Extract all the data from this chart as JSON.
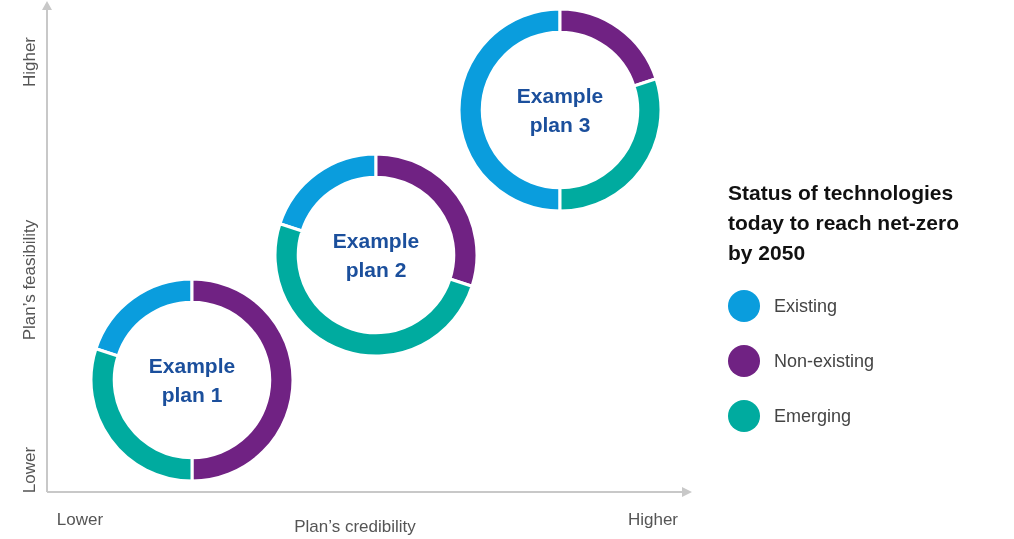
{
  "chart_data": {
    "type": "donut",
    "categories": [
      "Existing",
      "Non-existing",
      "Emerging"
    ],
    "colors": [
      "#0a9ddd",
      "#702283",
      "#00ab9f"
    ],
    "series": [
      {
        "name": "Example plan 1",
        "values": [
          20,
          50,
          30
        ]
      },
      {
        "name": "Example plan 2",
        "values": [
          20,
          30,
          50
        ]
      },
      {
        "name": "Example plan 3",
        "values": [
          50,
          20,
          30
        ]
      }
    ],
    "legend": "right",
    "legend_title": "Status of technologies today to reach net-zero by 2050",
    "xlabel": "Plan’s credibility",
    "ylabel": "Plan’s feasibility",
    "annotations": [
      "Lower",
      "Higher",
      "Lower",
      "Higher"
    ]
  }
}
